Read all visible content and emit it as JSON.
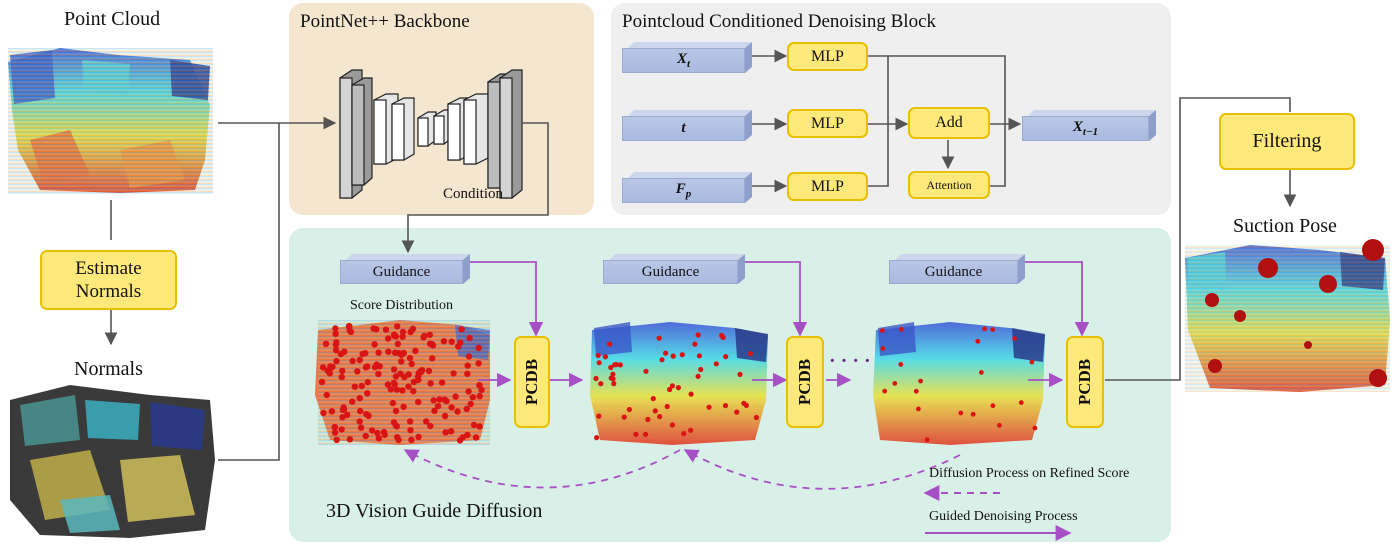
{
  "point_cloud_label": "Point Cloud",
  "estimate_normals_label": "Estimate\nNormals",
  "normals_label": "Normals",
  "backbone": {
    "title": "PointNet++ Backbone",
    "condition_label": "Condition"
  },
  "denoising_block": {
    "title": "Pointcloud Conditioned Denoising Block",
    "inputs": [
      {
        "sym": "X",
        "sub": "t"
      },
      {
        "sym": "t",
        "sub": ""
      },
      {
        "sym": "F",
        "sub": "p"
      }
    ],
    "mlp_label": "MLP",
    "add_label": "Add",
    "attention_label": "Attention",
    "output": {
      "sym": "X",
      "sub": "t−1"
    }
  },
  "diffusion": {
    "title": "3D Vision Guide Diffusion",
    "guidance_label": "Guidance",
    "score_distribution_label": "Score Distribution",
    "pcdb_label": "PCDB",
    "ellipsis": "· · · ·",
    "legend": {
      "dashed": "Diffusion Process on Refined Score",
      "solid": "Guided Denoising Process"
    }
  },
  "filtering_label": "Filtering",
  "suction_pose_label": "Suction Pose",
  "colors": {
    "backbone_panel": "#f5e6d0",
    "block_panel": "#efefef",
    "diffusion_panel": "#d9f0e8",
    "yellow_box": "#ffe97a",
    "yellow_border": "#e8c000",
    "slab": "#aebfe3",
    "purple": "#a74fc4",
    "arrow": "#555555"
  }
}
